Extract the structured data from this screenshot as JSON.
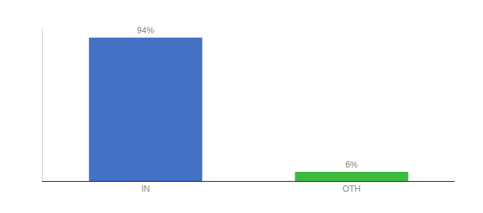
{
  "chart_data": {
    "type": "bar",
    "categories": [
      "IN",
      "OTH"
    ],
    "values": [
      94,
      6
    ],
    "value_labels": [
      "94%",
      "6%"
    ],
    "colors": [
      "#4472c4",
      "#3dbb3d"
    ],
    "ylim": [
      0,
      100
    ],
    "data_labels": true,
    "tick_labels": "x",
    "grid": false
  }
}
